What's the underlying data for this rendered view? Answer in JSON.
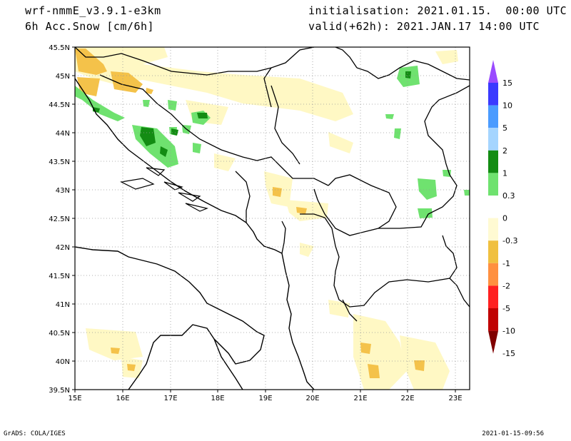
{
  "header": {
    "model": "wrf-nmmE_v3.9.1-e3km",
    "variable": "6h Acc.Snow [cm/6h]",
    "initialisation": "initialisation: 2021.01.15.  00:00 UTC",
    "valid": "valid(+62h): 2021.JAN.17 14:00 UTC"
  },
  "footer": {
    "left": "GrADS: COLA/IGES",
    "right": "2021-01-15-09:56"
  },
  "axes": {
    "lat_labels": [
      "45.5N",
      "45N",
      "44.5N",
      "44N",
      "43.5N",
      "43N",
      "42.5N",
      "42N",
      "41.5N",
      "41N",
      "40.5N",
      "40N",
      "39.5N"
    ],
    "lon_labels": [
      "15E",
      "16E",
      "17E",
      "18E",
      "19E",
      "20E",
      "21E",
      "22E",
      "23E"
    ],
    "lat_range": [
      39.5,
      45.5
    ],
    "lon_range": [
      15.0,
      23.3
    ],
    "grid": "dotted"
  },
  "colorbar": {
    "labels": [
      "15",
      "10",
      "5",
      "2",
      "1",
      "0.3",
      "0",
      "-0.3",
      "-1",
      "-2",
      "-5",
      "-10",
      "-15"
    ],
    "colors": [
      "#9a4bff",
      "#3a3aff",
      "#4a9bff",
      "#a5d5ff",
      "#138c13",
      "#6fe26f",
      "#ffffff",
      "#fffad2",
      "#f0c040",
      "#ff9040",
      "#ff2020",
      "#c00000",
      "#800000"
    ]
  },
  "colors": {
    "coast": "#000000",
    "light_yellow": "#fff8c4",
    "orange_yellow": "#f4c24a",
    "light_green": "#6fe26f",
    "dark_green": "#138c13",
    "light_blue": "#a5d5ff"
  }
}
